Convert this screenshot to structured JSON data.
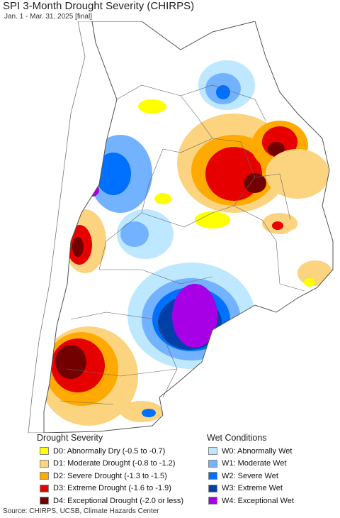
{
  "title": "SPI 3-Month Drought Severity (CHIRPS)",
  "subtitle": "Jan. 1 - Mar. 31, 2025 [final]",
  "legend": {
    "drought": {
      "heading": "Drought Severity",
      "items": [
        {
          "label": "D0: Abnormally Dry (-0.5 to -0.7)",
          "color": "#ffff00"
        },
        {
          "label": "D1: Moderate Drought (-0.8 to -1.2)",
          "color": "#fcd37f"
        },
        {
          "label": "D2: Severe Drought (-1.3 to -1.5)",
          "color": "#ffaa00"
        },
        {
          "label": "D3: Extreme Drought (-1.6 to -1.9)",
          "color": "#e60000"
        },
        {
          "label": "D4: Exceptional Drought (-2.0 or less)",
          "color": "#730000"
        }
      ]
    },
    "wet": {
      "heading": "Wet Conditions",
      "items": [
        {
          "label": "W0: Abnormally Wet",
          "color": "#bee8ff"
        },
        {
          "label": "W1: Moderate Wet",
          "color": "#73b2ff"
        },
        {
          "label": "W2: Severe Wet",
          "color": "#0070ff"
        },
        {
          "label": "W3: Extreme Wet",
          "color": "#0040a8"
        },
        {
          "label": "W4: Exceptional Wet",
          "color": "#a800e6"
        }
      ]
    }
  },
  "source": "Source: CHIRPS, UCSB, Climate Hazards Center"
}
